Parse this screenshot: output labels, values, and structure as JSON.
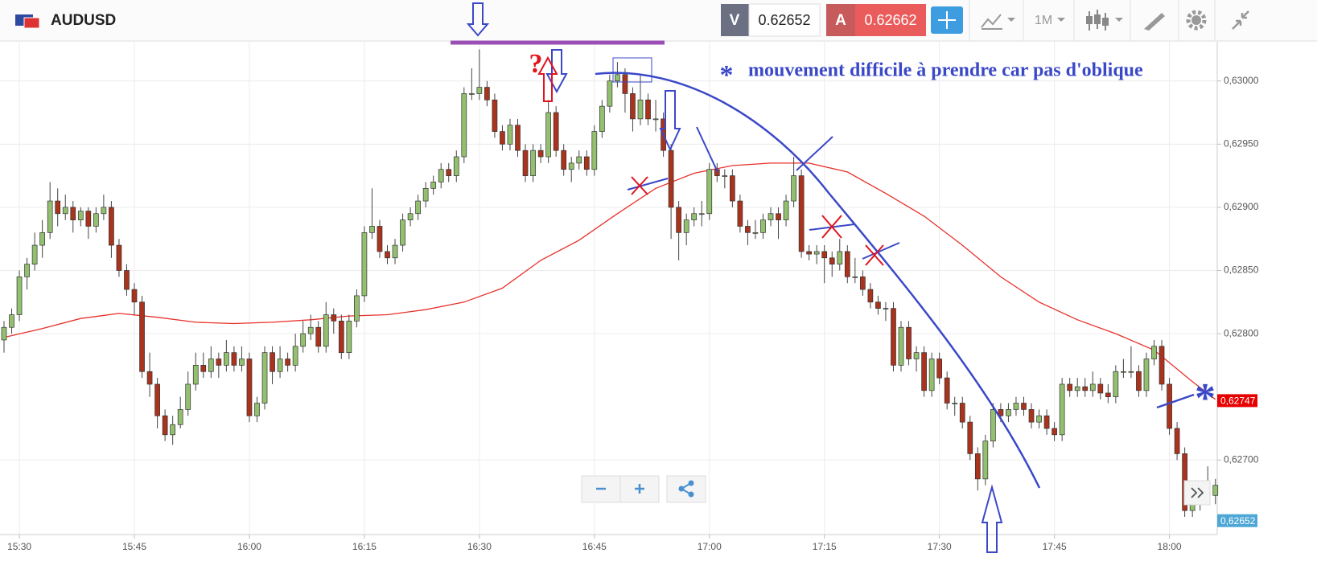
{
  "header": {
    "symbol": "AUDUSD",
    "bid_label": "V",
    "bid": 0.62652,
    "ask_label": "A",
    "ask": 0.62662,
    "timeframe": "1M"
  },
  "chart_data": {
    "type": "candlestick",
    "x": [
      "15:28",
      "15:29",
      "15:30",
      "15:31",
      "15:32",
      "15:33",
      "15:34",
      "15:35",
      "15:36",
      "15:37",
      "15:38",
      "15:39",
      "15:40",
      "15:41",
      "15:42",
      "15:43",
      "15:44",
      "15:45",
      "15:46",
      "15:47",
      "15:48",
      "15:49",
      "15:50",
      "15:51",
      "15:52",
      "15:53",
      "15:54",
      "15:55",
      "15:56",
      "15:57",
      "15:58",
      "15:59",
      "16:00",
      "16:01",
      "16:02",
      "16:03",
      "16:04",
      "16:05",
      "16:06",
      "16:07",
      "16:08",
      "16:09",
      "16:10",
      "16:11",
      "16:12",
      "16:13",
      "16:14",
      "16:15",
      "16:16",
      "16:17",
      "16:18",
      "16:19",
      "16:20",
      "16:21",
      "16:22",
      "16:23",
      "16:24",
      "16:25",
      "16:26",
      "16:27",
      "16:28",
      "16:29",
      "16:30",
      "16:31",
      "16:32",
      "16:33",
      "16:34",
      "16:35",
      "16:36",
      "16:37",
      "16:38",
      "16:39",
      "16:40",
      "16:41",
      "16:42",
      "16:43",
      "16:44",
      "16:45",
      "16:46",
      "16:47",
      "16:48",
      "16:49",
      "16:50",
      "16:51",
      "16:52",
      "16:53",
      "16:54",
      "16:55",
      "16:56",
      "16:57",
      "16:58",
      "16:59",
      "17:00",
      "17:01",
      "17:02",
      "17:03",
      "17:04",
      "17:05",
      "17:06",
      "17:07",
      "17:08",
      "17:09",
      "17:10",
      "17:11",
      "17:12",
      "17:13",
      "17:14",
      "17:15",
      "17:16",
      "17:17",
      "17:18",
      "17:19",
      "17:20",
      "17:21",
      "17:22",
      "17:23",
      "17:24",
      "17:25",
      "17:26",
      "17:27",
      "17:28",
      "17:29",
      "17:30",
      "17:31",
      "17:32",
      "17:33",
      "17:34",
      "17:35",
      "17:36",
      "17:37",
      "17:38",
      "17:39",
      "17:40",
      "17:41",
      "17:42",
      "17:43",
      "17:44",
      "17:45",
      "17:46",
      "17:47",
      "17:48",
      "17:49",
      "17:50",
      "17:51",
      "17:52",
      "17:53",
      "17:54",
      "17:55",
      "17:56",
      "17:57",
      "17:58",
      "17:59",
      "18:00",
      "18:01",
      "18:02",
      "18:03",
      "18:04",
      "18:05",
      "18:06"
    ],
    "open": [
      0.62795,
      0.62805,
      0.62815,
      0.62845,
      0.62855,
      0.6287,
      0.6288,
      0.62905,
      0.62895,
      0.629,
      0.6289,
      0.62897,
      0.62885,
      0.62895,
      0.629,
      0.6287,
      0.6285,
      0.62835,
      0.62825,
      0.6277,
      0.6276,
      0.62735,
      0.6272,
      0.62728,
      0.6274,
      0.6276,
      0.62775,
      0.6277,
      0.6278,
      0.62775,
      0.62785,
      0.62775,
      0.6278,
      0.62735,
      0.62745,
      0.62785,
      0.6277,
      0.6278,
      0.62775,
      0.6279,
      0.628,
      0.62805,
      0.6279,
      0.62815,
      0.6281,
      0.62785,
      0.6281,
      0.6283,
      0.6288,
      0.62885,
      0.62865,
      0.6286,
      0.6287,
      0.6289,
      0.62895,
      0.62905,
      0.62915,
      0.6292,
      0.6293,
      0.62925,
      0.6294,
      0.6299,
      0.6299,
      0.62995,
      0.62985,
      0.6296,
      0.6295,
      0.62965,
      0.62945,
      0.62925,
      0.62945,
      0.6294,
      0.62975,
      0.62945,
      0.6293,
      0.62935,
      0.6294,
      0.6293,
      0.6296,
      0.6298,
      0.63,
      0.63005,
      0.6299,
      0.6297,
      0.62985,
      0.6297,
      0.6297,
      0.62945,
      0.629,
      0.6288,
      0.6289,
      0.62895,
      0.62895,
      0.6293,
      0.62925,
      0.62925,
      0.62905,
      0.62885,
      0.6288,
      0.6288,
      0.6289,
      0.62895,
      0.6289,
      0.62905,
      0.62925,
      0.62865,
      0.62863,
      0.62865,
      0.6286,
      0.62855,
      0.62865,
      0.62845,
      0.62845,
      0.62835,
      0.62825,
      0.6282,
      0.6282,
      0.62775,
      0.62805,
      0.6278,
      0.62785,
      0.62755,
      0.6278,
      0.62765,
      0.62745,
      0.62745,
      0.6273,
      0.62705,
      0.62685,
      0.62715,
      0.6274,
      0.62735,
      0.6274,
      0.62745,
      0.6274,
      0.6273,
      0.62735,
      0.62725,
      0.6272,
      0.6276,
      0.62755,
      0.62758,
      0.62755,
      0.6276,
      0.62753,
      0.6275,
      0.6277,
      0.6277,
      0.6277,
      0.62755,
      0.6278,
      0.6279,
      0.6276,
      0.62725,
      0.62705,
      0.6266,
      0.62665,
      0.62675,
      0.62672
    ],
    "high": [
      0.6281,
      0.6282,
      0.6285,
      0.6286,
      0.6288,
      0.6289,
      0.6292,
      0.62915,
      0.6291,
      0.62905,
      0.629,
      0.629,
      0.629,
      0.6291,
      0.62905,
      0.62875,
      0.62855,
      0.6284,
      0.6283,
      0.62785,
      0.62765,
      0.6274,
      0.62735,
      0.6275,
      0.6277,
      0.62785,
      0.62785,
      0.6279,
      0.62785,
      0.62795,
      0.6279,
      0.6279,
      0.62785,
      0.6275,
      0.6279,
      0.6279,
      0.6279,
      0.62785,
      0.628,
      0.6281,
      0.62815,
      0.6281,
      0.62825,
      0.6282,
      0.62815,
      0.62815,
      0.62835,
      0.62885,
      0.62915,
      0.6289,
      0.6287,
      0.62875,
      0.62895,
      0.629,
      0.6291,
      0.6292,
      0.62925,
      0.62935,
      0.62935,
      0.62945,
      0.62995,
      0.6301,
      0.63025,
      0.63,
      0.6299,
      0.62965,
      0.6297,
      0.6297,
      0.6295,
      0.6295,
      0.6295,
      0.62985,
      0.6298,
      0.6295,
      0.6294,
      0.62945,
      0.62945,
      0.62965,
      0.62985,
      0.63005,
      0.63015,
      0.6301,
      0.62995,
      0.63005,
      0.6299,
      0.62985,
      0.62975,
      0.6295,
      0.62905,
      0.62895,
      0.629,
      0.62905,
      0.62935,
      0.62935,
      0.6293,
      0.6293,
      0.6291,
      0.6289,
      0.6289,
      0.62895,
      0.629,
      0.629,
      0.6291,
      0.6294,
      0.6293,
      0.6287,
      0.6287,
      0.6287,
      0.62865,
      0.62875,
      0.6287,
      0.6286,
      0.6285,
      0.6284,
      0.6283,
      0.62825,
      0.62825,
      0.6281,
      0.6281,
      0.6279,
      0.6279,
      0.62785,
      0.62785,
      0.6277,
      0.6275,
      0.6275,
      0.62735,
      0.6271,
      0.6272,
      0.62745,
      0.62745,
      0.62745,
      0.6275,
      0.6275,
      0.62745,
      0.6274,
      0.6274,
      0.6273,
      0.62765,
      0.62765,
      0.62765,
      0.62765,
      0.6277,
      0.62765,
      0.6276,
      0.62775,
      0.6278,
      0.6279,
      0.62775,
      0.62785,
      0.62795,
      0.62795,
      0.62765,
      0.6273,
      0.6271,
      0.6267,
      0.6268,
      0.62695,
      0.62685
    ],
    "low": [
      0.62785,
      0.628,
      0.6281,
      0.62835,
      0.6285,
      0.6286,
      0.62875,
      0.62885,
      0.6289,
      0.6288,
      0.62885,
      0.62875,
      0.6288,
      0.6289,
      0.6286,
      0.62845,
      0.6283,
      0.62815,
      0.62765,
      0.6275,
      0.62725,
      0.62715,
      0.62712,
      0.62725,
      0.62735,
      0.62755,
      0.62765,
      0.62765,
      0.62765,
      0.6277,
      0.6277,
      0.6277,
      0.6273,
      0.6273,
      0.6274,
      0.6276,
      0.62765,
      0.6277,
      0.6277,
      0.62785,
      0.62795,
      0.62785,
      0.62785,
      0.628,
      0.6278,
      0.6278,
      0.62805,
      0.62825,
      0.62875,
      0.6286,
      0.62855,
      0.62855,
      0.62865,
      0.62885,
      0.6289,
      0.629,
      0.6291,
      0.62915,
      0.6292,
      0.6292,
      0.62935,
      0.62985,
      0.62985,
      0.6298,
      0.62955,
      0.62945,
      0.62945,
      0.6294,
      0.6292,
      0.6292,
      0.62935,
      0.62935,
      0.6294,
      0.62925,
      0.6292,
      0.6293,
      0.62925,
      0.62925,
      0.62955,
      0.62975,
      0.62995,
      0.62975,
      0.6296,
      0.62965,
      0.62965,
      0.6296,
      0.6294,
      0.62875,
      0.62858,
      0.6287,
      0.62885,
      0.62885,
      0.6289,
      0.6292,
      0.62915,
      0.629,
      0.6288,
      0.6287,
      0.62875,
      0.62875,
      0.62885,
      0.62875,
      0.62885,
      0.629,
      0.6286,
      0.62858,
      0.62855,
      0.6284,
      0.62845,
      0.6285,
      0.6284,
      0.6284,
      0.6283,
      0.6282,
      0.62815,
      0.6281,
      0.6277,
      0.6277,
      0.62775,
      0.6277,
      0.6275,
      0.6275,
      0.6276,
      0.6274,
      0.62735,
      0.62725,
      0.627,
      0.62676,
      0.6268,
      0.6271,
      0.6273,
      0.6273,
      0.62735,
      0.62735,
      0.62725,
      0.62725,
      0.6272,
      0.62715,
      0.62715,
      0.6275,
      0.6275,
      0.6275,
      0.6275,
      0.62748,
      0.62745,
      0.62745,
      0.62765,
      0.62765,
      0.6275,
      0.6275,
      0.62775,
      0.62755,
      0.6272,
      0.627,
      0.62655,
      0.62655,
      0.6266,
      0.62665,
      0.62665
    ],
    "close": [
      0.62805,
      0.62815,
      0.62845,
      0.62855,
      0.6287,
      0.6288,
      0.62905,
      0.62895,
      0.629,
      0.6289,
      0.62897,
      0.62885,
      0.62895,
      0.629,
      0.6287,
      0.6285,
      0.62835,
      0.62825,
      0.6277,
      0.6276,
      0.62735,
      0.6272,
      0.62728,
      0.6274,
      0.6276,
      0.62775,
      0.6277,
      0.6278,
      0.62775,
      0.62785,
      0.62775,
      0.6278,
      0.62735,
      0.62745,
      0.62785,
      0.6277,
      0.6278,
      0.62775,
      0.6279,
      0.628,
      0.62805,
      0.6279,
      0.62815,
      0.6281,
      0.62785,
      0.6281,
      0.6283,
      0.6288,
      0.62885,
      0.62865,
      0.6286,
      0.6287,
      0.6289,
      0.62895,
      0.62905,
      0.62915,
      0.6292,
      0.6293,
      0.62925,
      0.6294,
      0.6299,
      0.6299,
      0.62995,
      0.62985,
      0.6296,
      0.6295,
      0.62965,
      0.62945,
      0.62925,
      0.62945,
      0.6294,
      0.62975,
      0.62945,
      0.6293,
      0.62935,
      0.6294,
      0.6293,
      0.6296,
      0.6298,
      0.63,
      0.63005,
      0.6299,
      0.6297,
      0.62985,
      0.6297,
      0.6297,
      0.62945,
      0.629,
      0.6288,
      0.6289,
      0.62895,
      0.62895,
      0.6293,
      0.62925,
      0.62925,
      0.62905,
      0.62885,
      0.6288,
      0.6288,
      0.6289,
      0.62895,
      0.6289,
      0.62905,
      0.62925,
      0.62865,
      0.62863,
      0.62865,
      0.6286,
      0.62855,
      0.62865,
      0.62845,
      0.62845,
      0.62835,
      0.62825,
      0.6282,
      0.6282,
      0.62775,
      0.62805,
      0.6278,
      0.62785,
      0.62755,
      0.6278,
      0.62765,
      0.62745,
      0.62745,
      0.6273,
      0.62705,
      0.62685,
      0.62715,
      0.6274,
      0.62735,
      0.6274,
      0.62745,
      0.6274,
      0.6273,
      0.62735,
      0.62725,
      0.6272,
      0.6276,
      0.62755,
      0.62758,
      0.62755,
      0.6276,
      0.62753,
      0.6275,
      0.6277,
      0.6277,
      0.6277,
      0.62755,
      0.6278,
      0.6279,
      0.6276,
      0.62725,
      0.62705,
      0.6266,
      0.62665,
      0.62675,
      0.62672,
      0.6268
    ],
    "up_color": "#93c06f",
    "down_color": "#a9331c",
    "ylim": [
      0.62641,
      0.63031
    ],
    "yticks": [
      {
        "value": 0.627,
        "label": "0,62700"
      },
      {
        "value": 0.628,
        "label": "0,62800"
      },
      {
        "value": 0.6285,
        "label": "0,62850"
      },
      {
        "value": 0.629,
        "label": "0,62900"
      },
      {
        "value": 0.6295,
        "label": "0,62950"
      },
      {
        "value": 0.63,
        "label": "0,63000"
      }
    ],
    "xticks": [
      "15:30",
      "15:45",
      "16:00",
      "16:15",
      "16:30",
      "16:45",
      "17:00",
      "17:15",
      "17:30",
      "17:45",
      "18:00"
    ],
    "grid": true,
    "moving_average": {
      "color": "#e8302a",
      "x": [
        "15:28",
        "15:33",
        "15:38",
        "15:43",
        "15:48",
        "15:53",
        "15:58",
        "16:03",
        "16:08",
        "16:13",
        "16:18",
        "16:23",
        "16:28",
        "16:33",
        "16:38",
        "16:43",
        "16:48",
        "16:53",
        "16:58",
        "17:03",
        "17:08",
        "17:13",
        "17:18",
        "17:23",
        "17:28",
        "17:33",
        "17:38",
        "17:43",
        "17:48",
        "17:53",
        "17:58",
        "18:03",
        "18:06"
      ],
      "values": [
        0.62797,
        0.62804,
        0.62812,
        0.62816,
        0.62813,
        0.62809,
        0.62808,
        0.62809,
        0.62811,
        0.62814,
        0.62815,
        0.62819,
        0.62825,
        0.62836,
        0.62858,
        0.62874,
        0.62895,
        0.62915,
        0.62927,
        0.62933,
        0.62935,
        0.62935,
        0.62928,
        0.62911,
        0.62893,
        0.6287,
        0.62845,
        0.62825,
        0.62811,
        0.628,
        0.62787,
        0.62762,
        0.62748
      ]
    },
    "price_markers": [
      {
        "value": 0.62747,
        "label": "0,62747",
        "color": "#e60000"
      },
      {
        "value": 0.62652,
        "label": "0,62652",
        "color": "#4ea7d6"
      }
    ],
    "annotations": {
      "question": "?",
      "note_star": "*",
      "note": "mouvement difficile à prendre car pas d'oblique",
      "end_star": "*"
    }
  }
}
